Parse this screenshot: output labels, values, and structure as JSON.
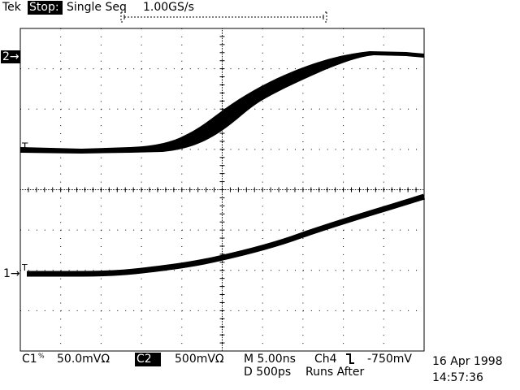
{
  "header": {
    "brand": "Tek",
    "state": "Stop:",
    "mode": "Single Seq",
    "sample_rate": "1.00GS/s"
  },
  "markers": {
    "ch2": "2→",
    "trigger_top": "T",
    "ch1": "1→",
    "trigger_bottom": "T"
  },
  "footer": {
    "ch1_label": "C1",
    "ch1_scale": "50.0mVΩ",
    "ch2_label": "C2",
    "ch2_scale": "500mVΩ",
    "time_scale": "M 5.00ns",
    "delay": "D 500ps",
    "trigger_source": "Ch4",
    "trigger_level": "-750mV",
    "runs": "Runs After",
    "date": "16 Apr 1998",
    "time": "14:57:36"
  }
}
